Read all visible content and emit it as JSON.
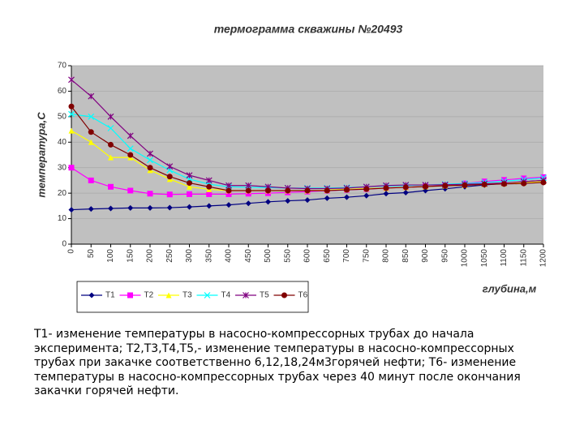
{
  "chart_data": {
    "type": "line",
    "title": "термограмма скважины №20493",
    "y_label": "температура,С",
    "x_label": "глубина,м",
    "x": [
      0,
      50,
      100,
      150,
      200,
      250,
      300,
      350,
      400,
      450,
      500,
      550,
      600,
      650,
      700,
      750,
      800,
      850,
      900,
      950,
      1000,
      1050,
      1100,
      1150,
      1200
    ],
    "xlim": [
      0,
      1200
    ],
    "xticks": [
      0,
      50,
      100,
      150,
      200,
      250,
      300,
      350,
      400,
      450,
      500,
      550,
      600,
      650,
      700,
      750,
      800,
      850,
      900,
      950,
      1000,
      1050,
      1100,
      1150,
      1200
    ],
    "ylim": [
      0,
      70
    ],
    "yticks": [
      0,
      10,
      20,
      30,
      40,
      50,
      60,
      70
    ],
    "grid": true,
    "legend": "bottom",
    "series": [
      {
        "name": "T1",
        "color": "#000080",
        "values": [
          13.5,
          13.8,
          14,
          14.2,
          14.2,
          14.3,
          14.6,
          15,
          15.4,
          16,
          16.6,
          17,
          17.3,
          18,
          18.4,
          19,
          19.8,
          20.2,
          21,
          21.7,
          22.5,
          23.2,
          23.8,
          24.5,
          25
        ]
      },
      {
        "name": "T2",
        "color": "#ff00ff",
        "values": [
          30,
          25,
          22.5,
          21,
          19.8,
          19.5,
          19.6,
          19.6,
          19.6,
          19.8,
          20,
          20.3,
          20.6,
          21,
          21.3,
          21.6,
          22,
          22.3,
          22.6,
          23,
          23.8,
          24.6,
          25.2,
          25.8,
          26.3
        ]
      },
      {
        "name": "T3",
        "color": "#ffff00",
        "values": [
          44.5,
          40,
          34,
          34,
          29,
          25.5,
          22.5,
          21.5,
          21,
          21,
          21,
          21,
          21,
          21.2,
          21.5,
          21.8,
          22,
          22.3,
          22.6,
          22.9,
          23.2,
          23.5,
          23.8,
          24.2,
          24.6
        ]
      },
      {
        "name": "T4",
        "color": "#00ffff",
        "values": [
          51,
          50,
          45.5,
          37.5,
          33,
          29,
          25.5,
          23.5,
          22.5,
          22.3,
          22.2,
          22,
          22,
          22,
          22.2,
          22.5,
          22.8,
          23,
          23.2,
          23.5,
          23.8,
          24.2,
          24.7,
          25.3,
          26
        ]
      },
      {
        "name": "T5",
        "color": "#800080",
        "values": [
          64.5,
          58,
          50,
          42.5,
          35.5,
          30.5,
          27,
          25,
          23,
          23,
          22.5,
          22,
          21.8,
          21.8,
          22,
          22.5,
          23,
          23.2,
          23.2,
          23.3,
          23.5,
          23.7,
          24,
          24.5,
          25
        ]
      },
      {
        "name": "T6",
        "color": "#800000",
        "values": [
          54,
          44,
          39,
          35,
          30,
          26.5,
          24,
          22.5,
          21,
          21,
          21,
          21,
          21,
          21,
          21.3,
          21.6,
          22,
          22.3,
          22.6,
          22.9,
          23.1,
          23.4,
          23.6,
          23.8,
          24.2
        ]
      }
    ]
  },
  "caption": "Т1- изменение температуры в насосно-компрессорных трубах до начала эксперимента; Т2,Т3,Т4,Т5,- изменение температуры в насосно-компрессорных трубах при закачке соответственно 6,12,18,24м3горячей нефти; Т6- изменение температуры в насосно-компрессорных трубах через 40 минут после окончания закачки горячей нефти."
}
